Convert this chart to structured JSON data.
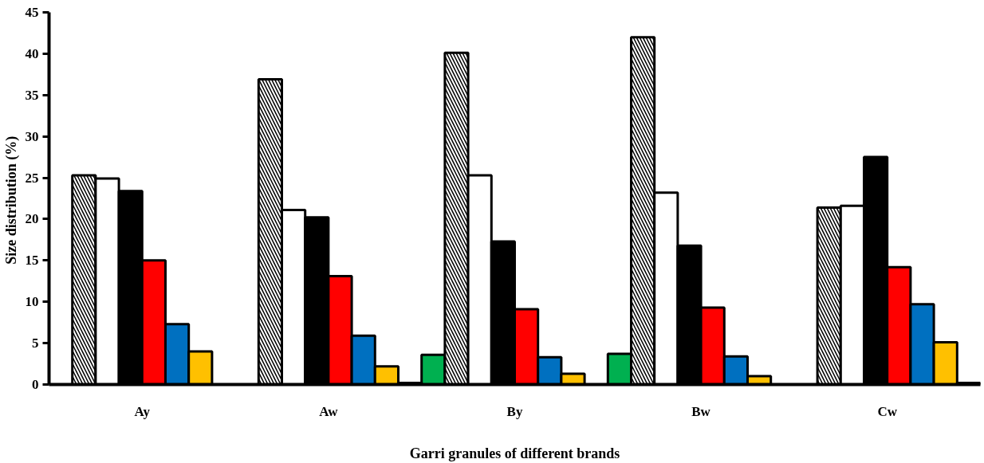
{
  "chart_data": {
    "type": "bar",
    "xlabel": "Garri granules of different brands",
    "ylabel": "Size  distribution (%)",
    "categories": [
      "Ay",
      "Aw",
      "By",
      "Bw",
      "Cw"
    ],
    "ylim": [
      0,
      45
    ],
    "yticks": [
      0,
      5,
      10,
      15,
      20,
      25,
      30,
      35,
      40,
      45
    ],
    "grid": false,
    "series": [
      {
        "color": "#00b050",
        "values": [
          null,
          null,
          3.6,
          3.7,
          null
        ]
      },
      {
        "color": "#ffffff",
        "values": [
          25.3,
          36.9,
          40.1,
          42.0,
          21.4
        ]
      },
      {
        "color": "#ffffff",
        "values": [
          24.9,
          21.1,
          25.3,
          23.2,
          21.6
        ]
      },
      {
        "color": "#000000",
        "values": [
          23.4,
          20.2,
          17.3,
          16.8,
          27.5
        ]
      },
      {
        "color": "#ff0000",
        "values": [
          15.0,
          13.1,
          9.1,
          9.3,
          14.2
        ]
      },
      {
        "color": "#0070c0",
        "values": [
          7.3,
          5.9,
          3.3,
          3.4,
          9.7
        ]
      },
      {
        "color": "#ffc000",
        "values": [
          4.0,
          2.2,
          1.3,
          1.0,
          5.1
        ]
      },
      {
        "color": "#c55a11",
        "values": [
          null,
          0.2,
          null,
          null,
          0.2
        ]
      }
    ]
  }
}
